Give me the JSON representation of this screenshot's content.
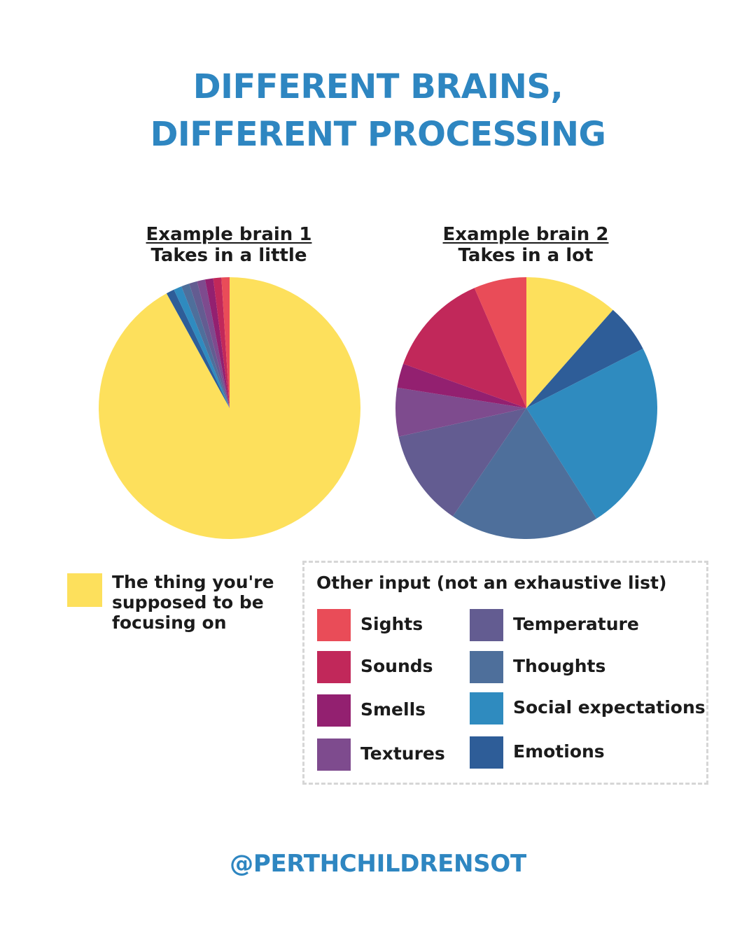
{
  "title_line1": "DIFFERENT BRAINS,",
  "title_line2": "DIFFERENT PROCESSING",
  "handle": "@PERTHCHILDRENSOT",
  "focus_legend": "The thing you're supposed to be focusing on",
  "other_legend_title": "Other input (not an exhaustive list)",
  "colors": {
    "focus": "#fde05c",
    "sights": "#e94c58",
    "sounds": "#c1285a",
    "smells": "#932070",
    "textures": "#7e4b8e",
    "temperature": "#635c91",
    "thoughts": "#4e6f9b",
    "social_expectations": "#2f8bbf",
    "emotions": "#2e5d98"
  },
  "legend_items": [
    {
      "key": "sights",
      "label": "Sights"
    },
    {
      "key": "sounds",
      "label": "Sounds"
    },
    {
      "key": "smells",
      "label": "Smells"
    },
    {
      "key": "textures",
      "label": "Textures"
    },
    {
      "key": "temperature",
      "label": "Temperature"
    },
    {
      "key": "thoughts",
      "label": "Thoughts"
    },
    {
      "key": "social_expectations",
      "label": "Social expectations"
    },
    {
      "key": "emotions",
      "label": "Emotions"
    }
  ],
  "chart_data": [
    {
      "type": "pie",
      "title": "Example brain 1",
      "subtitle": "Takes in a little",
      "categories": [
        "The thing you're supposed to be focusing on",
        "Emotions",
        "Social expectations",
        "Thoughts",
        "Temperature",
        "Textures",
        "Smells",
        "Sounds",
        "Sights"
      ],
      "keys": [
        "focus",
        "emotions",
        "social_expectations",
        "thoughts",
        "temperature",
        "textures",
        "smells",
        "sounds",
        "sights"
      ],
      "values": [
        92.0,
        1.0,
        1.0,
        1.0,
        1.0,
        1.0,
        1.0,
        1.0,
        1.0
      ]
    },
    {
      "type": "pie",
      "title": "Example brain 2",
      "subtitle": "Takes in a lot",
      "categories": [
        "The thing you're supposed to be focusing on",
        "Emotions",
        "Social expectations",
        "Thoughts",
        "Temperature",
        "Textures",
        "Smells",
        "Sounds",
        "Sights"
      ],
      "keys": [
        "focus",
        "emotions",
        "social_expectations",
        "thoughts",
        "temperature",
        "textures",
        "smells",
        "sounds",
        "sights"
      ],
      "values": [
        11.5,
        6.0,
        23.5,
        18.5,
        12.0,
        6.0,
        3.0,
        13.0,
        6.5
      ]
    }
  ]
}
